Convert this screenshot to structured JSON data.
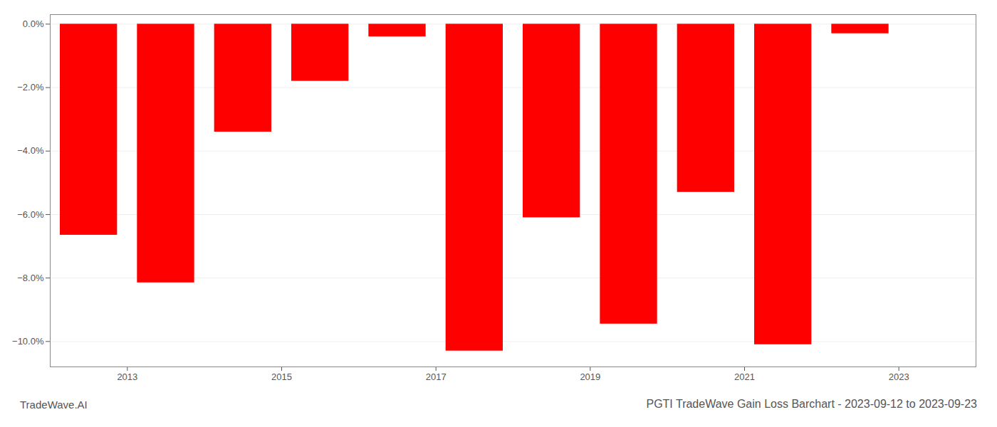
{
  "chart_data": {
    "type": "bar",
    "title": "PGTI TradeWave Gain Loss Barchart - 2023-09-12 to 2023-09-23",
    "annotations": [
      "TradeWave.AI"
    ],
    "x": [
      2012.5,
      2013.5,
      2014.5,
      2015.5,
      2016.5,
      2017.5,
      2018.5,
      2019.5,
      2020.5,
      2021.5,
      2022.5
    ],
    "values": [
      -6.65,
      -8.15,
      -3.4,
      -1.8,
      -0.4,
      -10.3,
      -6.1,
      -9.45,
      -5.3,
      -10.1,
      -0.3
    ],
    "color": "#ff0000",
    "xlim": [
      2012.0,
      2024.0
    ],
    "xticks": [
      2013,
      2015,
      2017,
      2019,
      2021,
      2023
    ],
    "ylim": [
      -10.8,
      0.3
    ],
    "yticks": [
      {
        "value": 0.0,
        "label": "0.0%"
      },
      {
        "value": -2.0,
        "label": "−2.0%"
      },
      {
        "value": -4.0,
        "label": "−4.0%"
      },
      {
        "value": -6.0,
        "label": "−6.0%"
      },
      {
        "value": -8.0,
        "label": "−8.0%"
      },
      {
        "value": -10.0,
        "label": "−10.0%"
      }
    ],
    "grid": true
  }
}
